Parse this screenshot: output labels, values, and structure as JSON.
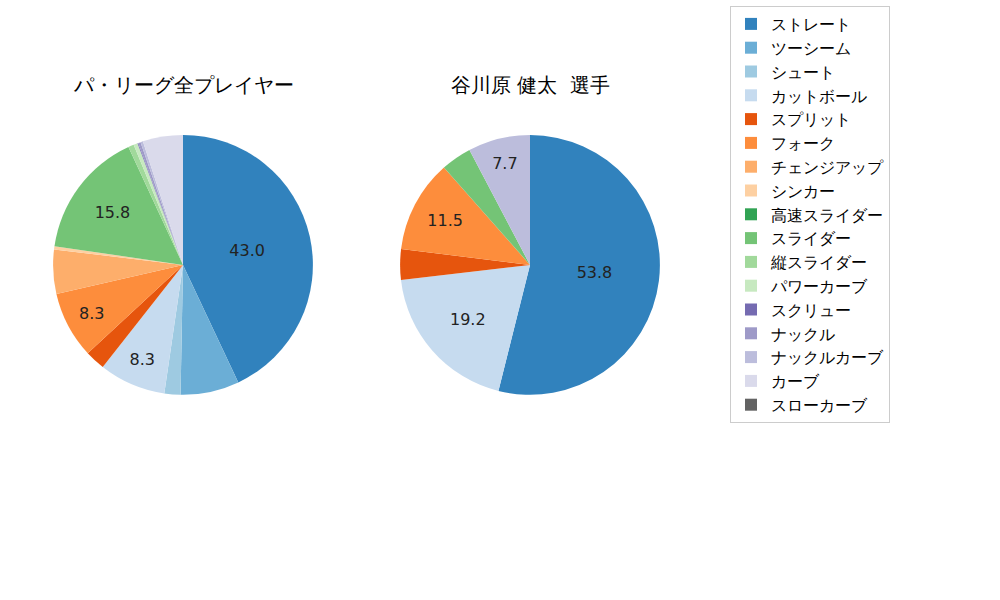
{
  "chart_data": [
    {
      "type": "pie",
      "title": "パ・リーグ全プレイヤー",
      "categories": [
        "ストレート",
        "ツーシーム",
        "シュート",
        "カットボール",
        "スプリット",
        "フォーク",
        "チェンジアップ",
        "シンカー",
        "高速スライダー",
        "スライダー",
        "縦スライダー",
        "パワーカーブ",
        "スクリュー",
        "ナックル",
        "ナックルカーブ",
        "カーブ",
        "スローカーブ"
      ],
      "values": [
        43.0,
        7.3,
        2.0,
        8.3,
        2.5,
        8.3,
        5.5,
        0.4,
        0,
        15.8,
        0.7,
        0.5,
        0.1,
        0.3,
        0.3,
        5.0,
        0
      ],
      "value_labels": [
        "43.0",
        null,
        null,
        "8.3",
        null,
        "8.3",
        null,
        null,
        null,
        "15.8",
        null,
        null,
        null,
        null,
        null,
        null,
        null
      ],
      "colors": [
        "#3182bd",
        "#6baed6",
        "#9ecae1",
        "#c6dbef",
        "#e6550d",
        "#fd8d3c",
        "#fdae6b",
        "#fdd0a2",
        "#31a354",
        "#74c476",
        "#a1d99b",
        "#c7e9c0",
        "#756bb1",
        "#9e9ac8",
        "#bcbddc",
        "#dadaeb",
        "#636363"
      ],
      "legend": "right"
    },
    {
      "type": "pie",
      "title": "谷川原 健太  選手",
      "categories": [
        "ストレート",
        "ツーシーム",
        "シュート",
        "カットボール",
        "スプリット",
        "フォーク",
        "チェンジアップ",
        "シンカー",
        "高速スライダー",
        "スライダー",
        "縦スライダー",
        "パワーカーブ",
        "スクリュー",
        "ナックル",
        "ナックルカーブ",
        "カーブ",
        "スローカーブ"
      ],
      "values": [
        53.8,
        0,
        0,
        19.2,
        3.8,
        11.5,
        0,
        0,
        0,
        3.8,
        0,
        0,
        0,
        0,
        7.7,
        0,
        0
      ],
      "value_labels": [
        "53.8",
        null,
        null,
        "19.2",
        null,
        "11.5",
        null,
        null,
        null,
        null,
        null,
        null,
        null,
        null,
        "7.7",
        null,
        null
      ],
      "colors": [
        "#3182bd",
        "#6baed6",
        "#9ecae1",
        "#c6dbef",
        "#e6550d",
        "#fd8d3c",
        "#fdae6b",
        "#fdd0a2",
        "#31a354",
        "#74c476",
        "#a1d99b",
        "#c7e9c0",
        "#756bb1",
        "#9e9ac8",
        "#bcbddc",
        "#dadaeb",
        "#636363"
      ],
      "legend": "right"
    }
  ]
}
